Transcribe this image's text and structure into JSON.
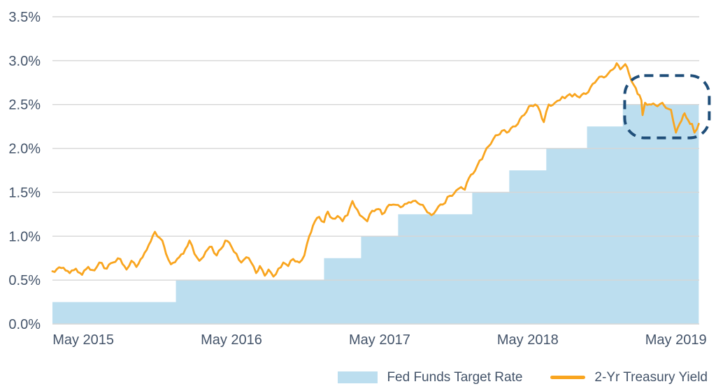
{
  "colors": {
    "area_fill": "#BCDEEF",
    "line_stroke": "#F9A51F",
    "gridline": "#D6D6D6",
    "axis_text": "#44546A",
    "annotation_stroke": "#1F4E79",
    "background": "#FFFFFF"
  },
  "legend": {
    "items": [
      {
        "label": "Fed Funds Target Rate",
        "swatch": "area"
      },
      {
        "label": "2-Yr Treasury Yield",
        "swatch": "line"
      }
    ]
  },
  "chart_data": {
    "type": "combo (step-area + line)",
    "title": "",
    "xlabel": "",
    "ylabel": "",
    "grid": true,
    "legend_position": "bottom-right",
    "x_axis": {
      "unit": "months since 2015-03",
      "range": [
        -0.5,
        52
      ],
      "tick_positions": [
        2,
        14,
        26,
        38,
        50
      ],
      "tick_labels": [
        "May 2015",
        "May 2016",
        "May 2017",
        "May 2018",
        "May 2019"
      ]
    },
    "y_axis": {
      "range": [
        0,
        3.5
      ],
      "tick_values": [
        0,
        0.5,
        1.0,
        1.5,
        2.0,
        2.5,
        3.0,
        3.5
      ],
      "tick_labels": [
        "0.0%",
        "0.5%",
        "1.0%",
        "1.5%",
        "2.0%",
        "2.5%",
        "3.0%",
        "3.5%"
      ]
    },
    "series": [
      {
        "name": "Fed Funds Target Rate",
        "type": "step-area",
        "color": "#BCDEEF",
        "note": "upper bound of FOMC target range, percent",
        "steps": [
          {
            "date": "2015-03",
            "t": -0.5,
            "rate": 0.25
          },
          {
            "date": "2015-12",
            "t": 9.5,
            "rate": 0.5
          },
          {
            "date": "2016-12",
            "t": 21.5,
            "rate": 0.75
          },
          {
            "date": "2017-03",
            "t": 24.5,
            "rate": 1.0
          },
          {
            "date": "2017-06",
            "t": 27.5,
            "rate": 1.25
          },
          {
            "date": "2017-12",
            "t": 33.5,
            "rate": 1.5
          },
          {
            "date": "2018-03",
            "t": 36.5,
            "rate": 1.75
          },
          {
            "date": "2018-06",
            "t": 39.5,
            "rate": 2.0
          },
          {
            "date": "2018-09",
            "t": 42.8,
            "rate": 2.25
          },
          {
            "date": "2018-12",
            "t": 45.7,
            "rate": 2.5
          }
        ],
        "end_t": 51.85
      },
      {
        "name": "2-Yr Treasury Yield",
        "type": "line",
        "color": "#F9A51F",
        "unit": "percent",
        "points": [
          [
            -0.5,
            0.6
          ],
          [
            0.4,
            0.64
          ],
          [
            0.9,
            0.58
          ],
          [
            1.4,
            0.63
          ],
          [
            1.9,
            0.56
          ],
          [
            2.4,
            0.65
          ],
          [
            2.9,
            0.61
          ],
          [
            3.3,
            0.7
          ],
          [
            3.9,
            0.63
          ],
          [
            4.4,
            0.7
          ],
          [
            5.0,
            0.74
          ],
          [
            5.5,
            0.62
          ],
          [
            5.9,
            0.72
          ],
          [
            6.3,
            0.65
          ],
          [
            6.8,
            0.76
          ],
          [
            7.3,
            0.9
          ],
          [
            7.8,
            1.05
          ],
          [
            8.4,
            0.95
          ],
          [
            8.7,
            0.8
          ],
          [
            9.1,
            0.68
          ],
          [
            9.6,
            0.74
          ],
          [
            10.1,
            0.8
          ],
          [
            10.6,
            0.95
          ],
          [
            11.0,
            0.8
          ],
          [
            11.4,
            0.72
          ],
          [
            11.9,
            0.82
          ],
          [
            12.4,
            0.88
          ],
          [
            12.8,
            0.78
          ],
          [
            13.5,
            0.95
          ],
          [
            14.0,
            0.88
          ],
          [
            14.4,
            0.8
          ],
          [
            14.8,
            0.7
          ],
          [
            15.2,
            0.76
          ],
          [
            15.6,
            0.7
          ],
          [
            16.0,
            0.58
          ],
          [
            16.3,
            0.66
          ],
          [
            16.7,
            0.55
          ],
          [
            17.0,
            0.62
          ],
          [
            17.4,
            0.54
          ],
          [
            17.8,
            0.63
          ],
          [
            18.2,
            0.7
          ],
          [
            18.6,
            0.66
          ],
          [
            19.0,
            0.74
          ],
          [
            19.5,
            0.7
          ],
          [
            19.9,
            0.78
          ],
          [
            20.3,
            1.0
          ],
          [
            20.6,
            1.12
          ],
          [
            21.1,
            1.22
          ],
          [
            21.5,
            1.16
          ],
          [
            21.8,
            1.28
          ],
          [
            22.2,
            1.2
          ],
          [
            22.6,
            1.23
          ],
          [
            23.0,
            1.17
          ],
          [
            23.4,
            1.24
          ],
          [
            23.8,
            1.4
          ],
          [
            24.2,
            1.3
          ],
          [
            24.6,
            1.22
          ],
          [
            25.0,
            1.17
          ],
          [
            25.4,
            1.29
          ],
          [
            25.9,
            1.31
          ],
          [
            26.2,
            1.25
          ],
          [
            26.6,
            1.33
          ],
          [
            27.1,
            1.36
          ],
          [
            27.7,
            1.33
          ],
          [
            28.2,
            1.37
          ],
          [
            28.7,
            1.4
          ],
          [
            29.3,
            1.36
          ],
          [
            29.7,
            1.31
          ],
          [
            30.2,
            1.24
          ],
          [
            30.6,
            1.3
          ],
          [
            31.1,
            1.36
          ],
          [
            31.7,
            1.46
          ],
          [
            32.2,
            1.52
          ],
          [
            32.6,
            1.56
          ],
          [
            32.9,
            1.53
          ],
          [
            33.4,
            1.7
          ],
          [
            33.9,
            1.8
          ],
          [
            34.5,
            1.95
          ],
          [
            35.0,
            2.05
          ],
          [
            35.4,
            2.15
          ],
          [
            35.9,
            2.2
          ],
          [
            36.3,
            2.18
          ],
          [
            36.8,
            2.25
          ],
          [
            37.2,
            2.28
          ],
          [
            37.7,
            2.38
          ],
          [
            38.1,
            2.48
          ],
          [
            38.6,
            2.5
          ],
          [
            39.0,
            2.42
          ],
          [
            39.3,
            2.3
          ],
          [
            39.7,
            2.5
          ],
          [
            40.2,
            2.52
          ],
          [
            40.6,
            2.55
          ],
          [
            41.2,
            2.6
          ],
          [
            41.8,
            2.62
          ],
          [
            42.2,
            2.58
          ],
          [
            42.7,
            2.62
          ],
          [
            43.1,
            2.7
          ],
          [
            43.6,
            2.78
          ],
          [
            44.0,
            2.82
          ],
          [
            44.5,
            2.85
          ],
          [
            44.9,
            2.9
          ],
          [
            45.2,
            2.97
          ],
          [
            45.5,
            2.9
          ],
          [
            45.7,
            2.93
          ],
          [
            45.9,
            2.96
          ],
          [
            46.2,
            2.85
          ],
          [
            46.6,
            2.72
          ],
          [
            46.9,
            2.62
          ],
          [
            47.2,
            2.55
          ],
          [
            47.3,
            2.38
          ],
          [
            47.5,
            2.52
          ],
          [
            48.0,
            2.5
          ],
          [
            48.5,
            2.48
          ],
          [
            48.9,
            2.52
          ],
          [
            49.2,
            2.46
          ],
          [
            49.6,
            2.44
          ],
          [
            49.8,
            2.3
          ],
          [
            50.0,
            2.18
          ],
          [
            50.3,
            2.28
          ],
          [
            50.6,
            2.38
          ],
          [
            50.7,
            2.4
          ],
          [
            51.0,
            2.32
          ],
          [
            51.3,
            2.28
          ],
          [
            51.5,
            2.18
          ],
          [
            51.7,
            2.22
          ],
          [
            51.85,
            2.28
          ]
        ]
      }
    ],
    "annotation": {
      "type": "dashed-rounded-box",
      "color": "#1F4E79",
      "t_start": 45.85,
      "t_end": 52.7,
      "value_low": 2.12,
      "value_high": 2.83
    }
  }
}
